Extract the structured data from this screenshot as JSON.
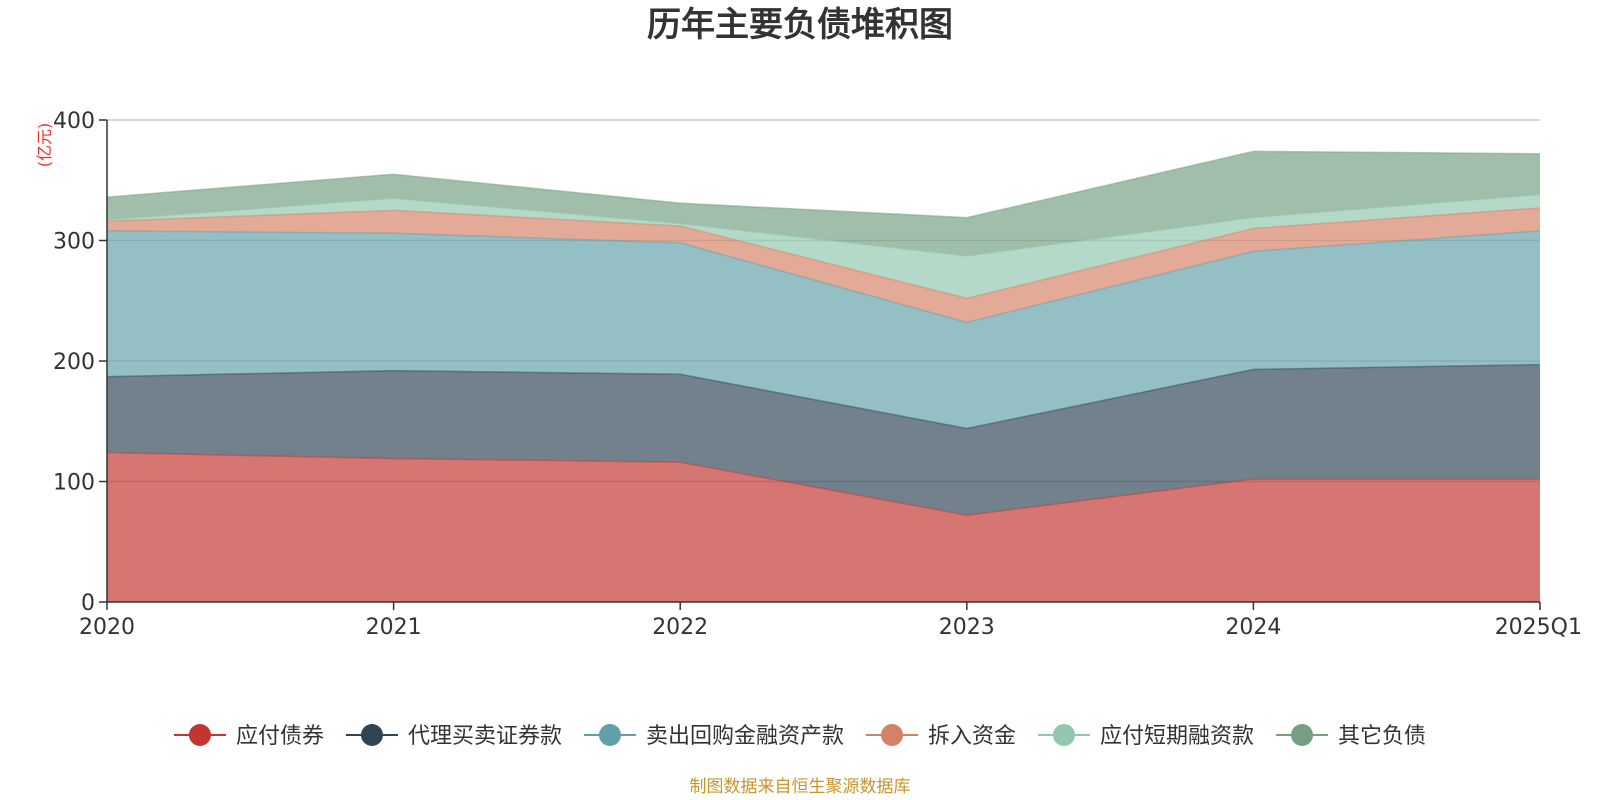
{
  "chart_data": {
    "type": "area",
    "stacked": true,
    "title": "历年主要负债堆积图",
    "ylabel": "(亿元)",
    "xlabel": "",
    "categories": [
      "2020",
      "2021",
      "2022",
      "2023",
      "2024",
      "2025Q1"
    ],
    "ylim": [
      0,
      400
    ],
    "yticks": [
      0,
      100,
      200,
      300,
      400
    ],
    "grid": true,
    "legend_position": "bottom",
    "series": [
      {
        "name": "应付债券",
        "color": "#c23531",
        "values": [
          124,
          119,
          116,
          72,
          102,
          102
        ]
      },
      {
        "name": "代理买卖证券款",
        "color": "#2f4554",
        "values": [
          63,
          73,
          73,
          72,
          91,
          95
        ]
      },
      {
        "name": "卖出回购金融资产款",
        "color": "#61a0a8",
        "values": [
          121,
          114,
          109,
          88,
          98,
          111
        ]
      },
      {
        "name": "拆入资金",
        "color": "#d48265",
        "values": [
          8,
          19,
          14,
          20,
          19,
          19
        ]
      },
      {
        "name": "应付短期融资款",
        "color": "#91c7ae",
        "values": [
          1,
          10,
          2,
          35,
          9,
          11
        ]
      },
      {
        "name": "其它负债",
        "color": "#749f83",
        "values": [
          19,
          20,
          17,
          32,
          55,
          34
        ]
      }
    ],
    "source": "制图数据来自恒生聚源数据库"
  }
}
